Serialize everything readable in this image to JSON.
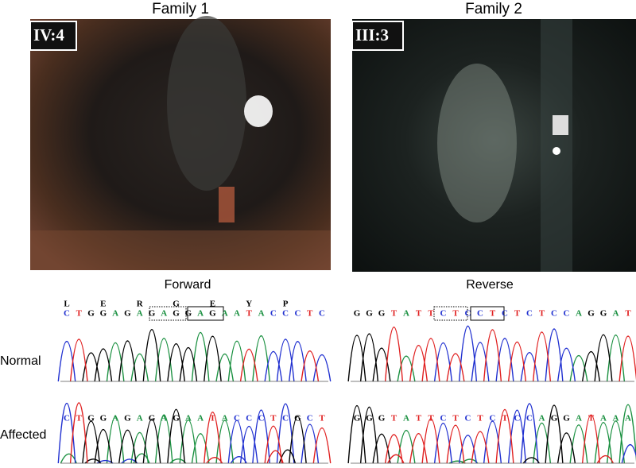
{
  "panels": [
    {
      "title": "Family 1",
      "patient": "IV:4",
      "direction": "Forward",
      "normal": {
        "bases": [
          "C",
          "T",
          "G",
          "G",
          "A",
          "G",
          "A",
          "G",
          "A",
          "G",
          "G",
          "A",
          "G",
          "A",
          "A",
          "T",
          "A",
          "C",
          "C",
          "C",
          "T",
          "C"
        ],
        "amino_acids": [
          "L",
          null,
          null,
          "E",
          null,
          null,
          "R",
          null,
          null,
          "G",
          null,
          null,
          "E",
          null,
          null,
          "Y",
          null,
          null,
          "P",
          null,
          null,
          null
        ]
      },
      "affected": {
        "bases": [
          "C",
          "T",
          "G",
          "G",
          "A",
          "G",
          "A",
          "G",
          "A",
          "G",
          "A",
          "A",
          "T",
          "A",
          "C",
          "C",
          "C",
          "T",
          "C",
          "G",
          "C",
          "T"
        ]
      }
    },
    {
      "title": "Family 2",
      "patient": "III:3",
      "direction": "Reverse",
      "normal": {
        "bases": [
          "G",
          "G",
          "G",
          "T",
          "A",
          "T",
          "T",
          "C",
          "T",
          "C",
          "C",
          "T",
          "C",
          "T",
          "C",
          "T",
          "C",
          "C",
          "A",
          "G",
          "G",
          "A",
          "T"
        ]
      },
      "affected": {
        "bases": [
          "G",
          "G",
          "G",
          "T",
          "A",
          "T",
          "T",
          "C",
          "T",
          "C",
          "T",
          "C",
          "T",
          "C",
          "C",
          "A",
          "G",
          "G",
          "A",
          "T",
          "A",
          "A",
          "A"
        ]
      }
    }
  ],
  "row_labels": {
    "normal": "Normal",
    "affected": "Affected"
  }
}
